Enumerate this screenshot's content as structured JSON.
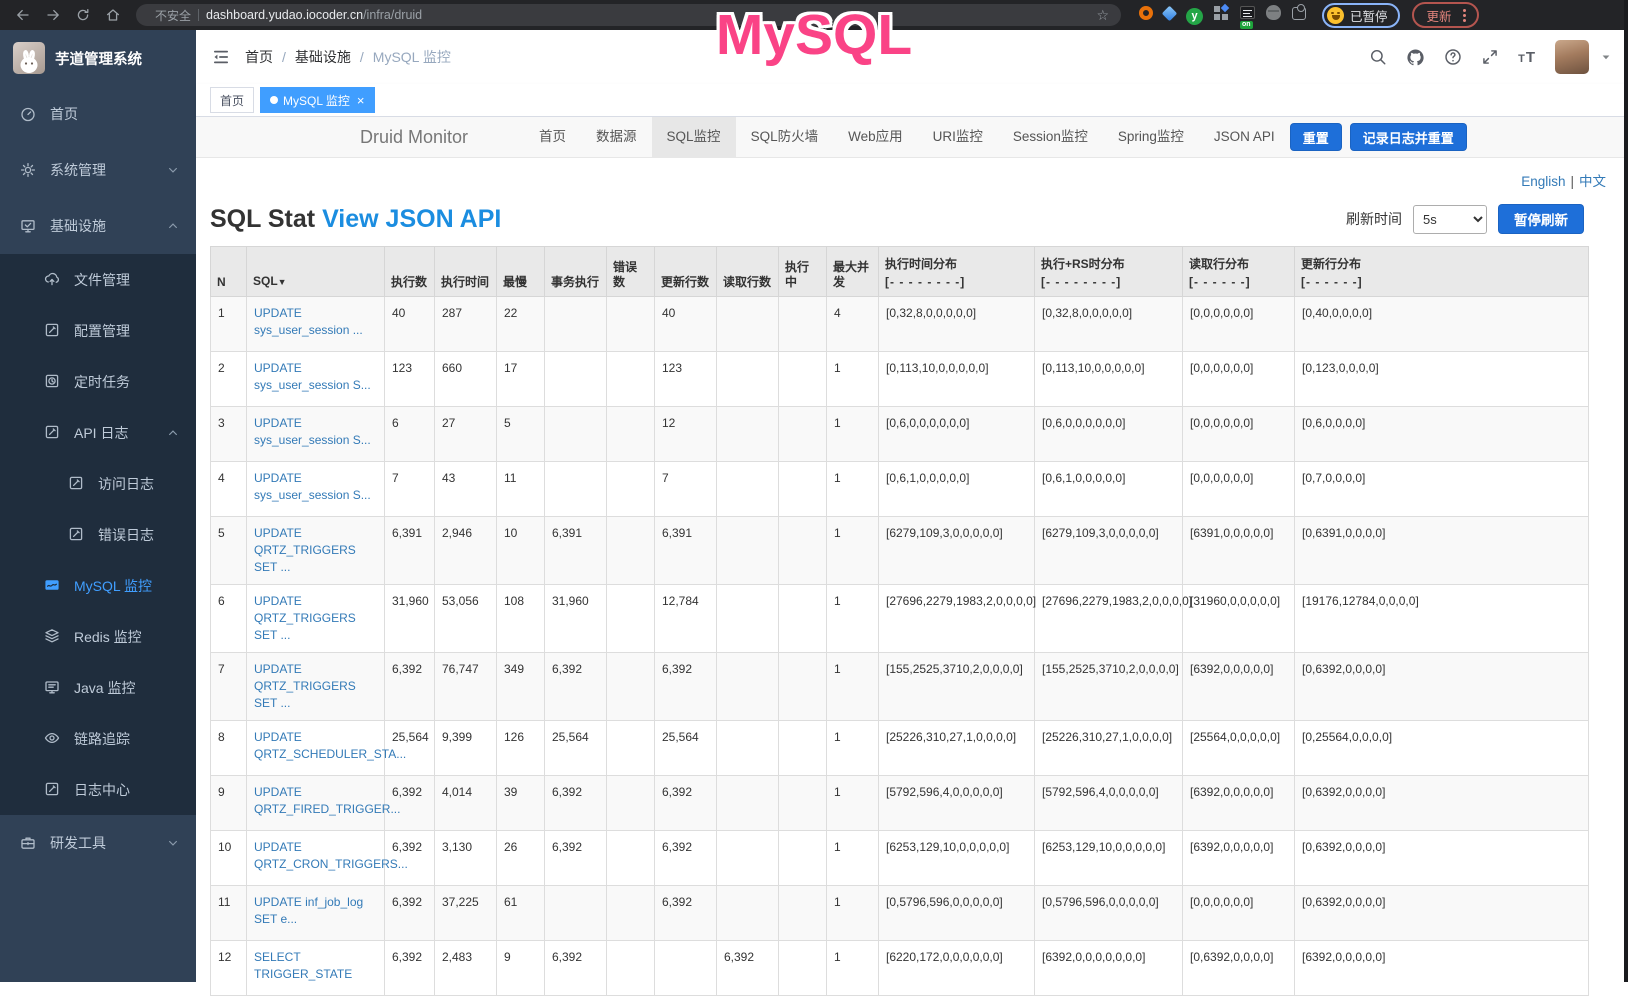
{
  "browser": {
    "nav_icons": [
      "back-arrow-icon",
      "forward-arrow-icon",
      "reload-icon",
      "home-icon"
    ],
    "security_warning": "不安全",
    "url_host": "dashboard.yudao.iocoder.cn",
    "url_path": "/infra/druid",
    "bookmark_icon": "bookmark-star-icon",
    "bookmark_glyph": "☆",
    "extensions": [
      {
        "name": "orange-ring-icon"
      },
      {
        "name": "blue-gem-icon"
      },
      {
        "name": "green-y-icon",
        "letter": "y"
      },
      {
        "name": "squares-icon"
      },
      {
        "name": "list-on-icon",
        "badge": "on"
      },
      {
        "name": "detective-icon"
      },
      {
        "name": "puzzle-icon"
      }
    ],
    "profile_chip": {
      "icon": "smiley-face-icon",
      "label": "已暂停"
    },
    "update_chip": {
      "label": "更新",
      "menu_icon": "kebab-menu-icon"
    }
  },
  "overlay": {
    "text": "MySQL"
  },
  "colors": {
    "accent_blue": "#409eff",
    "druid_button_blue": "#1e6fd9",
    "overlay_pink": "#fa4386",
    "link_blue": "#337ab7",
    "view_json_blue": "#1b8de0"
  },
  "sidebar": {
    "title": "芋道管理系统",
    "logo_icon": "rabbit-avatar",
    "items": [
      {
        "key": "home",
        "label": "首页",
        "icon": "dashboard-gauge-icon"
      },
      {
        "key": "system-management",
        "label": "系统管理",
        "icon": "gear-icon",
        "chevron": "down"
      },
      {
        "key": "infrastructure",
        "label": "基础设施",
        "icon": "infrastructure-monitor-icon",
        "chevron": "up",
        "expanded": true,
        "children": [
          {
            "key": "file-management",
            "label": "文件管理",
            "icon": "cloud-upload-icon"
          },
          {
            "key": "config-management",
            "label": "配置管理",
            "icon": "edit-square-icon"
          },
          {
            "key": "scheduled-tasks",
            "label": "定时任务",
            "icon": "timer-icon"
          },
          {
            "key": "api-log",
            "label": "API 日志",
            "icon": "edit-square-icon",
            "chevron": "up",
            "expanded": true,
            "children": [
              {
                "key": "access-log",
                "label": "访问日志",
                "icon": "edit-square-icon"
              },
              {
                "key": "error-log",
                "label": "错误日志",
                "icon": "edit-square-icon"
              }
            ]
          },
          {
            "key": "mysql-monitor",
            "label": "MySQL 监控",
            "icon": "mysql-monitor-icon",
            "active": true
          },
          {
            "key": "redis-monitor",
            "label": "Redis 监控",
            "icon": "layers-icon"
          },
          {
            "key": "java-monitor",
            "label": "Java 监控",
            "icon": "java-monitor-icon"
          },
          {
            "key": "trace",
            "label": "链路追踪",
            "icon": "eye-icon"
          },
          {
            "key": "log-center",
            "label": "日志中心",
            "icon": "edit-square-icon"
          }
        ]
      },
      {
        "key": "dev-tools",
        "label": "研发工具",
        "icon": "toolbox-icon",
        "chevron": "down"
      }
    ]
  },
  "header": {
    "fold_icon": "fold-menu-icon",
    "breadcrumb": [
      "首页",
      "基础设施",
      "MySQL 监控"
    ],
    "breadcrumb_separator": "/",
    "icons": [
      "search-icon",
      "github-icon",
      "help-icon",
      "fullscreen-icon",
      "font-size-icon"
    ],
    "avatar": "user-avatar",
    "caret": "caret-down-icon"
  },
  "tags": [
    {
      "label": "首页",
      "active": false
    },
    {
      "label": "MySQL 监控",
      "active": true,
      "close_glyph": "×"
    }
  ],
  "druid": {
    "brand": "Druid Monitor",
    "nav": [
      {
        "key": "home",
        "label": "首页"
      },
      {
        "key": "datasource",
        "label": "数据源"
      },
      {
        "key": "sql-monitor",
        "label": "SQL监控",
        "active": true
      },
      {
        "key": "sql-firewall",
        "label": "SQL防火墙"
      },
      {
        "key": "web-app",
        "label": "Web应用"
      },
      {
        "key": "uri-monitor",
        "label": "URI监控"
      },
      {
        "key": "session-monitor",
        "label": "Session监控"
      },
      {
        "key": "spring-monitor",
        "label": "Spring监控"
      },
      {
        "key": "json-api",
        "label": "JSON API"
      }
    ],
    "buttons": [
      {
        "key": "reset",
        "label": "重置"
      },
      {
        "key": "log-and-reset",
        "label": "记录日志并重置"
      }
    ],
    "lang_links": [
      "English",
      "中文"
    ],
    "lang_separator": "|",
    "title": "SQL Stat",
    "title_link": "View JSON API",
    "refresh_label": "刷新时间",
    "refresh_value": "5s",
    "pause_label": "暂停刷新"
  },
  "table": {
    "headers": [
      {
        "label": "N"
      },
      {
        "label": "SQL",
        "sort": "▼"
      },
      {
        "label": "执行数"
      },
      {
        "label": "执行时间"
      },
      {
        "label": "最慢"
      },
      {
        "label": "事务执行"
      },
      {
        "label": "错误数"
      },
      {
        "label": "更新行数"
      },
      {
        "label": "读取行数"
      },
      {
        "label": "执行中"
      },
      {
        "label": "最大并发"
      },
      {
        "label": "执行时间分布",
        "sub": "[- - - - - - - -]"
      },
      {
        "label": "执行+RS时分布",
        "sub": "[- - - - - - - -]"
      },
      {
        "label": "读取行分布",
        "sub": "[- - - - - -]"
      },
      {
        "label": "更新行分布",
        "sub": "[- - - - - -]"
      }
    ],
    "rows": [
      [
        "1",
        "UPDATE sys_user_session ...",
        "40",
        "287",
        "22",
        "",
        "",
        "40",
        "",
        "",
        "4",
        "[0,32,8,0,0,0,0,0]",
        "[0,32,8,0,0,0,0,0]",
        "[0,0,0,0,0,0]",
        "[0,40,0,0,0,0]"
      ],
      [
        "2",
        "UPDATE sys_user_session S...",
        "123",
        "660",
        "17",
        "",
        "",
        "123",
        "",
        "",
        "1",
        "[0,113,10,0,0,0,0,0]",
        "[0,113,10,0,0,0,0,0]",
        "[0,0,0,0,0,0]",
        "[0,123,0,0,0,0]"
      ],
      [
        "3",
        "UPDATE sys_user_session S...",
        "6",
        "27",
        "5",
        "",
        "",
        "12",
        "",
        "",
        "1",
        "[0,6,0,0,0,0,0,0]",
        "[0,6,0,0,0,0,0,0]",
        "[0,0,0,0,0,0]",
        "[0,6,0,0,0,0]"
      ],
      [
        "4",
        "UPDATE sys_user_session S...",
        "7",
        "43",
        "11",
        "",
        "",
        "7",
        "",
        "",
        "1",
        "[0,6,1,0,0,0,0,0]",
        "[0,6,1,0,0,0,0,0]",
        "[0,0,0,0,0,0]",
        "[0,7,0,0,0,0]"
      ],
      [
        "5",
        "UPDATE QRTZ_TRIGGERS SET ...",
        "6,391",
        "2,946",
        "10",
        "6,391",
        "",
        "6,391",
        "",
        "",
        "1",
        "[6279,109,3,0,0,0,0,0]",
        "[6279,109,3,0,0,0,0,0]",
        "[6391,0,0,0,0,0]",
        "[0,6391,0,0,0,0]"
      ],
      [
        "6",
        "UPDATE QRTZ_TRIGGERS SET ...",
        "31,960",
        "53,056",
        "108",
        "31,960",
        "",
        "12,784",
        "",
        "",
        "1",
        "[27696,2279,1983,2,0,0,0,0]",
        "[27696,2279,1983,2,0,0,0,0]",
        "[31960,0,0,0,0,0]",
        "[19176,12784,0,0,0,0]"
      ],
      [
        "7",
        "UPDATE QRTZ_TRIGGERS SET ...",
        "6,392",
        "76,747",
        "349",
        "6,392",
        "",
        "6,392",
        "",
        "",
        "1",
        "[155,2525,3710,2,0,0,0,0]",
        "[155,2525,3710,2,0,0,0,0]",
        "[6392,0,0,0,0,0]",
        "[0,6392,0,0,0,0]"
      ],
      [
        "8",
        "UPDATE QRTZ_SCHEDULER_STA...",
        "25,564",
        "9,399",
        "126",
        "25,564",
        "",
        "25,564",
        "",
        "",
        "1",
        "[25226,310,27,1,0,0,0,0]",
        "[25226,310,27,1,0,0,0,0]",
        "[25564,0,0,0,0,0]",
        "[0,25564,0,0,0,0]"
      ],
      [
        "9",
        "UPDATE QRTZ_FIRED_TRIGGER...",
        "6,392",
        "4,014",
        "39",
        "6,392",
        "",
        "6,392",
        "",
        "",
        "1",
        "[5792,596,4,0,0,0,0,0]",
        "[5792,596,4,0,0,0,0,0]",
        "[6392,0,0,0,0,0]",
        "[0,6392,0,0,0,0]"
      ],
      [
        "10",
        "UPDATE QRTZ_CRON_TRIGGERS...",
        "6,392",
        "3,130",
        "26",
        "6,392",
        "",
        "6,392",
        "",
        "",
        "1",
        "[6253,129,10,0,0,0,0,0]",
        "[6253,129,10,0,0,0,0,0]",
        "[6392,0,0,0,0,0]",
        "[0,6392,0,0,0,0]"
      ],
      [
        "11",
        "UPDATE inf_job_log SET e...",
        "6,392",
        "37,225",
        "61",
        "",
        "",
        "6,392",
        "",
        "",
        "1",
        "[0,5796,596,0,0,0,0,0]",
        "[0,5796,596,0,0,0,0,0]",
        "[0,0,0,0,0,0]",
        "[0,6392,0,0,0,0]"
      ],
      [
        "12",
        "SELECT TRIGGER_STATE",
        "6,392",
        "2,483",
        "9",
        "6,392",
        "",
        "",
        "6,392",
        "",
        "1",
        "[6220,172,0,0,0,0,0,0]",
        "[6392,0,0,0,0,0,0,0]",
        "[0,6392,0,0,0,0]",
        "[6392,0,0,0,0,0]"
      ]
    ]
  }
}
